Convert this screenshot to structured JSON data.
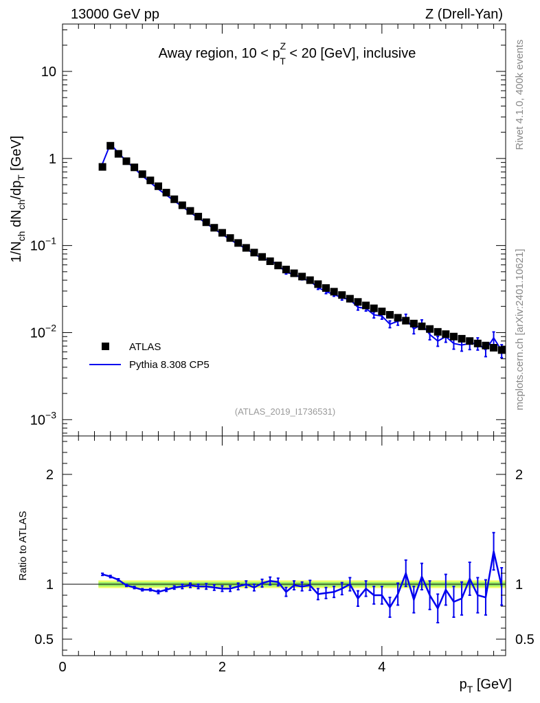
{
  "header": {
    "left": "13000 GeV pp",
    "right": "Z (Drell-Yan)"
  },
  "side": {
    "rivet": "Rivet 4.1.0,  400k events",
    "mcplots": "mcplots.cern.ch [arXiv:2401.10621]"
  },
  "colors": {
    "mc": "#0000ee",
    "band_outer": "#eeff66",
    "band_inner": "#99ee66",
    "data": "#000000"
  },
  "chart_data": [
    {
      "type": "scatter",
      "panel": "main",
      "title_parts": [
        "Away region, 10 < p",
        "Z",
        "T",
        " < 20 [GeV], inclusive"
      ],
      "ylabel": "1/N_ch dN_ch/dp_T [GeV]",
      "ylabel_parts": [
        "1/N",
        "ch",
        " dN",
        "ch",
        "/dp",
        "T",
        " [GeV]"
      ],
      "yscale": "log",
      "ylim": [
        0.00065,
        35
      ],
      "xlim": [
        0,
        5.55
      ],
      "ytick_labels": [
        {
          "value": 0.001,
          "base": "10",
          "exp": "−3"
        },
        {
          "value": 0.01,
          "base": "10",
          "exp": "−2"
        },
        {
          "value": 0.1,
          "base": "10",
          "exp": "−1"
        },
        {
          "value": 1,
          "base": "1",
          "exp": ""
        },
        {
          "value": 10,
          "base": "10",
          "exp": ""
        }
      ],
      "legend": {
        "position": "bottom-left",
        "entries": [
          {
            "label": "ATLAS",
            "style": "marker"
          },
          {
            "label": "Pythia 8.308 CP5",
            "style": "line"
          }
        ]
      },
      "annotation": "(ATLAS_2019_I1736531)",
      "x": [
        0.5,
        0.6,
        0.7,
        0.8,
        0.9,
        1.0,
        1.1,
        1.2,
        1.3,
        1.4,
        1.5,
        1.6,
        1.7,
        1.8,
        1.9,
        2.0,
        2.1,
        2.2,
        2.3,
        2.4,
        2.5,
        2.6,
        2.7,
        2.8,
        2.9,
        3.0,
        3.1,
        3.2,
        3.3,
        3.4,
        3.5,
        3.6,
        3.7,
        3.8,
        3.9,
        4.0,
        4.1,
        4.2,
        4.3,
        4.4,
        4.5,
        4.6,
        4.7,
        4.8,
        4.9,
        5.0,
        5.1,
        5.2,
        5.3,
        5.4,
        5.5
      ],
      "series": [
        {
          "name": "ATLAS",
          "values": [
            0.8,
            1.4,
            1.13,
            0.93,
            0.79,
            0.66,
            0.56,
            0.48,
            0.405,
            0.34,
            0.29,
            0.25,
            0.215,
            0.185,
            0.16,
            0.14,
            0.122,
            0.107,
            0.094,
            0.083,
            0.074,
            0.066,
            0.059,
            0.053,
            0.048,
            0.044,
            0.04,
            0.036,
            0.0325,
            0.0295,
            0.027,
            0.0245,
            0.0225,
            0.0205,
            0.019,
            0.0175,
            0.016,
            0.0148,
            0.0137,
            0.0127,
            0.0118,
            0.011,
            0.0102,
            0.0096,
            0.009,
            0.0085,
            0.008,
            0.0075,
            0.0071,
            0.0067,
            0.0063
          ]
        },
        {
          "name": "Pythia 8.308 CP5",
          "values": [
            0.87,
            1.47,
            1.16,
            0.93,
            0.77,
            0.63,
            0.53,
            0.445,
            0.38,
            0.325,
            0.28,
            0.24,
            0.208,
            0.18,
            0.155,
            0.135,
            0.117,
            0.103,
            0.092,
            0.08,
            0.071,
            0.067,
            0.06,
            0.049,
            0.047,
            0.042,
            0.039,
            0.033,
            0.0295,
            0.0275,
            0.025,
            0.024,
            0.0195,
            0.019,
            0.016,
            0.0155,
            0.0125,
            0.0135,
            0.0145,
            0.011,
            0.0125,
            0.0095,
            0.008,
            0.009,
            0.0075,
            0.0072,
            0.0075,
            0.0075,
            0.0063,
            0.0087,
            0.0062
          ]
        }
      ]
    },
    {
      "type": "line",
      "panel": "ratio",
      "ylabel": "Ratio to ATLAS",
      "xlabel_parts": [
        "p",
        "T",
        " [GeV]"
      ],
      "ylim": [
        0.35,
        2.35
      ],
      "xlim": [
        0,
        5.55
      ],
      "ytick_labels": [
        {
          "value": 0.5,
          "label": "0.5"
        },
        {
          "value": 1,
          "label": "1"
        },
        {
          "value": 2,
          "label": "2"
        }
      ],
      "xtick_labels": [
        {
          "value": 0,
          "label": "0"
        },
        {
          "value": 2,
          "label": "2"
        },
        {
          "value": 4,
          "label": "4"
        }
      ],
      "x": [
        0.5,
        0.6,
        0.7,
        0.8,
        0.9,
        1.0,
        1.1,
        1.2,
        1.3,
        1.4,
        1.5,
        1.6,
        1.7,
        1.8,
        1.9,
        2.0,
        2.1,
        2.2,
        2.3,
        2.4,
        2.5,
        2.6,
        2.7,
        2.8,
        2.9,
        3.0,
        3.1,
        3.2,
        3.3,
        3.4,
        3.5,
        3.6,
        3.7,
        3.8,
        3.9,
        4.0,
        4.1,
        4.2,
        4.3,
        4.4,
        4.5,
        4.6,
        4.7,
        4.8,
        4.9,
        5.0,
        5.1,
        5.2,
        5.3,
        5.4,
        5.5
      ],
      "values": [
        1.09,
        1.07,
        1.04,
        0.99,
        0.97,
        0.95,
        0.95,
        0.93,
        0.95,
        0.97,
        0.98,
        0.99,
        0.98,
        0.98,
        0.97,
        0.96,
        0.96,
        0.98,
        1.0,
        0.97,
        1.01,
        1.03,
        1.02,
        0.93,
        0.99,
        0.98,
        0.99,
        0.91,
        0.92,
        0.93,
        0.96,
        1.0,
        0.87,
        0.96,
        0.9,
        0.9,
        0.79,
        0.91,
        1.1,
        0.86,
        1.07,
        0.9,
        0.78,
        0.95,
        0.84,
        0.87,
        1.05,
        0.9,
        0.88,
        1.3,
        0.98
      ],
      "errors": [
        0.01,
        0.01,
        0.01,
        0.01,
        0.01,
        0.01,
        0.01,
        0.015,
        0.015,
        0.015,
        0.02,
        0.02,
        0.02,
        0.025,
        0.025,
        0.025,
        0.025,
        0.03,
        0.03,
        0.03,
        0.035,
        0.035,
        0.035,
        0.04,
        0.04,
        0.04,
        0.045,
        0.05,
        0.05,
        0.05,
        0.055,
        0.06,
        0.07,
        0.07,
        0.08,
        0.08,
        0.09,
        0.1,
        0.12,
        0.12,
        0.12,
        0.13,
        0.13,
        0.14,
        0.14,
        0.15,
        0.15,
        0.16,
        0.16,
        0.17,
        0.17
      ],
      "band_inner": 0.02,
      "band_outer": 0.035
    }
  ]
}
